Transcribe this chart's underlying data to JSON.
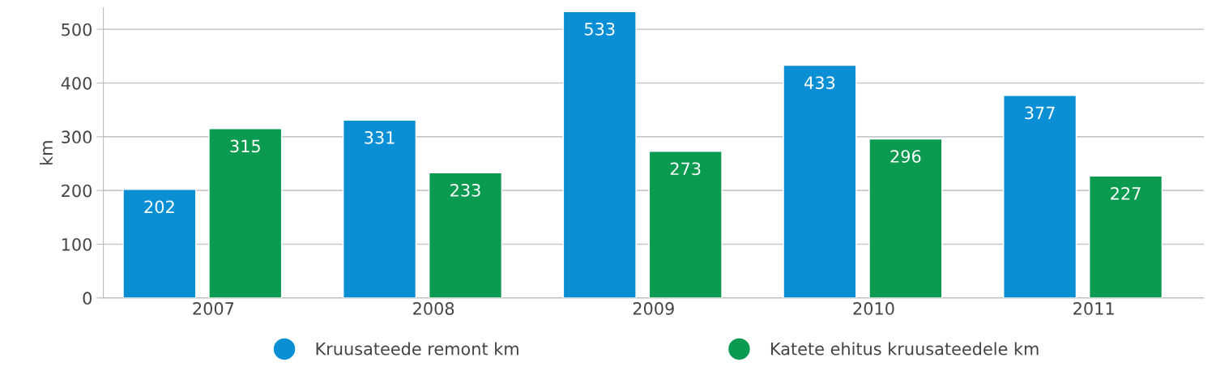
{
  "chart_data": {
    "type": "bar",
    "ylabel": "km",
    "categories": [
      "2007",
      "2008",
      "2009",
      "2010",
      "2011"
    ],
    "series": [
      {
        "name": "Kruusateede remont km",
        "color": "#0a8fd4",
        "values": [
          202,
          331,
          533,
          433,
          377
        ]
      },
      {
        "name": "Katete ehitus kruusateedele km",
        "color": "#0a9a50",
        "values": [
          315,
          233,
          273,
          296,
          227
        ]
      }
    ],
    "ylim": [
      0,
      540
    ],
    "yticks": [
      0,
      100,
      200,
      300,
      400,
      500
    ],
    "grid": "y",
    "legend": "bottom",
    "data_labels": true
  }
}
